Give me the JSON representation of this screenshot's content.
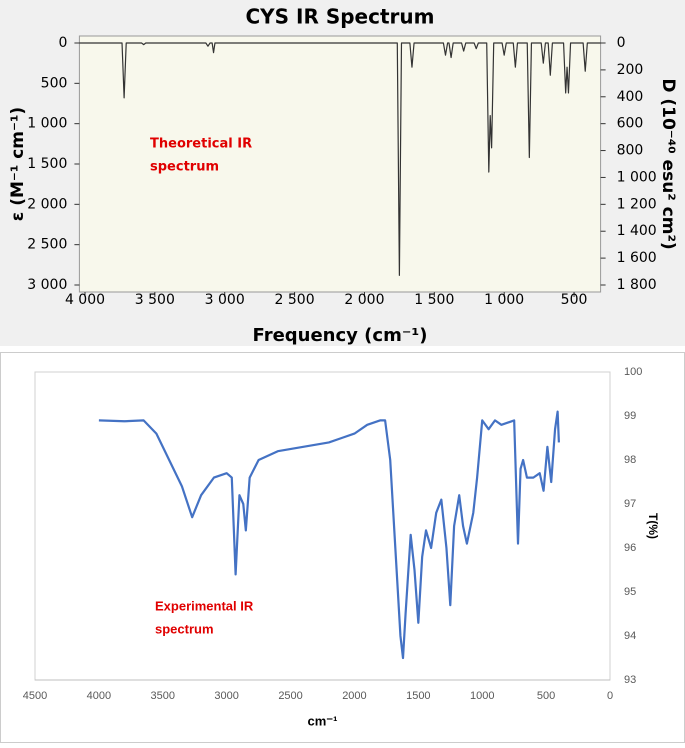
{
  "chart_data": [
    {
      "type": "line",
      "title": "CYS IR Spectrum",
      "x_label": "Frequency (cm⁻¹)",
      "y_label": "ε (M⁻¹ cm⁻¹)",
      "y2_label": "D (10⁻⁴⁰ esu² cm²)",
      "annotation": [
        "Theoretical IR",
        "spectrum"
      ],
      "annotation_color": "#e00000",
      "x": [
        4040,
        3735,
        3720,
        3705,
        3595,
        3580,
        3565,
        3135,
        3120,
        3105,
        3090,
        3080,
        3070,
        1765,
        1750,
        1735,
        1675,
        1660,
        1645,
        1435,
        1420,
        1405,
        1395,
        1380,
        1365,
        1305,
        1290,
        1275,
        1215,
        1200,
        1185,
        1125,
        1110,
        1100,
        1090,
        1075,
        1015,
        1000,
        985,
        935,
        920,
        905,
        835,
        820,
        805,
        735,
        720,
        705,
        685,
        670,
        655,
        575,
        560,
        550,
        540,
        525,
        435,
        420,
        405,
        310
      ],
      "series": [
        {
          "color": "#333333",
          "values": [
            0,
            0,
            680,
            0,
            0,
            20,
            0,
            0,
            40,
            0,
            0,
            120,
            0,
            0,
            2880,
            0,
            0,
            300,
            0,
            0,
            150,
            0,
            0,
            180,
            0,
            0,
            100,
            0,
            0,
            70,
            0,
            0,
            1600,
            900,
            1300,
            0,
            0,
            150,
            0,
            0,
            300,
            0,
            0,
            1420,
            0,
            0,
            250,
            0,
            0,
            400,
            0,
            0,
            620,
            300,
            620,
            0,
            0,
            350,
            0,
            0
          ]
        }
      ],
      "xlim": [
        4040,
        310
      ],
      "xticks": [
        {
          "value": 4000,
          "label": "4 000"
        },
        {
          "value": 3500,
          "label": "3 500"
        },
        {
          "value": 3000,
          "label": "3 000"
        },
        {
          "value": 2500,
          "label": "2 500"
        },
        {
          "value": 2000,
          "label": "2 000"
        },
        {
          "value": 1500,
          "label": "1 500"
        },
        {
          "value": 1000,
          "label": "1 000"
        },
        500
      ],
      "ylim": [
        0,
        3000
      ],
      "yticks": [
        0,
        500,
        {
          "value": 1000,
          "label": "1 000"
        },
        {
          "value": 1500,
          "label": "1 500"
        },
        {
          "value": 2000,
          "label": "2 000"
        },
        {
          "value": 2500,
          "label": "2 500"
        },
        {
          "value": 3000,
          "label": "3 000"
        }
      ],
      "y2lim": [
        0,
        1800
      ],
      "y2ticks": [
        0,
        200,
        400,
        600,
        800,
        {
          "value": 1000,
          "label": "1 000"
        },
        {
          "value": 1200,
          "label": "1 200"
        },
        {
          "value": 1400,
          "label": "1 400"
        },
        {
          "value": 1600,
          "label": "1 600"
        },
        {
          "value": 1800,
          "label": "1 800"
        }
      ],
      "y_inverted": true,
      "grid": false
    },
    {
      "type": "line",
      "x_label": "cm⁻¹",
      "y_label": "T(%)",
      "y_axis_side": "right",
      "annotation": [
        "Experimental IR",
        "spectrum"
      ],
      "annotation_color": "#e00000",
      "x": [
        4000,
        3800,
        3650,
        3550,
        3450,
        3350,
        3270,
        3200,
        3100,
        3000,
        2960,
        2930,
        2900,
        2870,
        2850,
        2820,
        2750,
        2600,
        2400,
        2200,
        2100,
        2000,
        1900,
        1800,
        1760,
        1720,
        1680,
        1640,
        1620,
        1600,
        1560,
        1530,
        1500,
        1470,
        1440,
        1400,
        1360,
        1320,
        1280,
        1250,
        1220,
        1180,
        1150,
        1120,
        1070,
        1040,
        1000,
        950,
        900,
        850,
        750,
        720,
        700,
        680,
        650,
        600,
        550,
        520,
        490,
        460,
        430,
        410,
        400
      ],
      "series": [
        {
          "color": "#4472c4",
          "values": [
            98.9,
            98.88,
            98.9,
            98.6,
            98.0,
            97.4,
            96.7,
            97.2,
            97.6,
            97.7,
            97.6,
            95.4,
            97.2,
            97.0,
            96.4,
            97.6,
            98.0,
            98.2,
            98.3,
            98.4,
            98.5,
            98.6,
            98.8,
            98.9,
            98.9,
            98.0,
            96.0,
            94.0,
            93.5,
            94.5,
            96.3,
            95.5,
            94.3,
            95.8,
            96.4,
            96.0,
            96.8,
            97.1,
            96.0,
            94.7,
            96.5,
            97.2,
            96.5,
            96.1,
            96.8,
            97.6,
            98.9,
            98.7,
            98.9,
            98.8,
            98.9,
            96.1,
            97.8,
            98.0,
            97.6,
            97.6,
            97.7,
            97.3,
            98.3,
            97.5,
            98.7,
            99.1,
            98.4
          ]
        }
      ],
      "xlim": [
        4500,
        0
      ],
      "xticks": [
        4500,
        4000,
        3500,
        3000,
        2500,
        2000,
        1500,
        1000,
        500,
        0
      ],
      "ylim": [
        93,
        100
      ],
      "yticks": [
        93,
        94,
        95,
        96,
        97,
        98,
        99,
        100
      ],
      "grid": false
    }
  ]
}
